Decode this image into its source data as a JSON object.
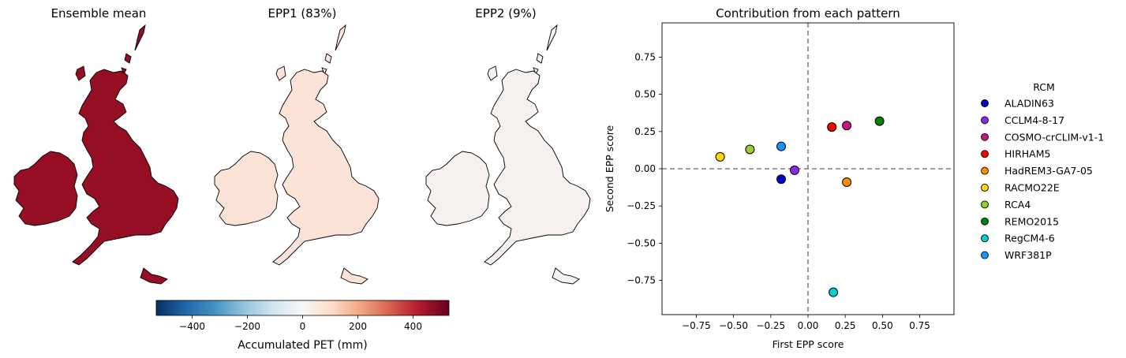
{
  "maps": [
    {
      "title": "Ensemble mean",
      "fill": "#960e24",
      "fill_alt": "#7a0620"
    },
    {
      "title": "EPP1 (83%)",
      "fill": "#fbe3d8",
      "fill_alt": "#f9dccd"
    },
    {
      "title": "EPP2 (9%)",
      "fill": "#f6f0ee",
      "fill_alt": "#eef3f7"
    }
  ],
  "colorbar": {
    "label": "Accumulated PET (mm)",
    "min": -530,
    "max": 530,
    "ticks": [
      -400,
      -200,
      0,
      200,
      400
    ],
    "tick_labels": [
      "−400",
      "−200",
      "0",
      "200",
      "400"
    ],
    "stops": [
      "#053061",
      "#2166ac",
      "#4393c3",
      "#92c5de",
      "#d1e5f0",
      "#f7f7f7",
      "#fddbc7",
      "#f4a582",
      "#d6604d",
      "#b2182b",
      "#67001f"
    ]
  },
  "chart_data": {
    "type": "scatter",
    "title": "Contribution from each pattern",
    "xlabel": "First EPP score",
    "ylabel": "Second EPP score",
    "xlim": [
      -0.98,
      0.98
    ],
    "ylim": [
      -0.98,
      0.98
    ],
    "xticks": [
      -0.75,
      -0.5,
      -0.25,
      0.0,
      0.25,
      0.5,
      0.75
    ],
    "xtick_labels": [
      "−0.75",
      "−0.50",
      "−0.25",
      "0.00",
      "0.25",
      "0.50",
      "0.75"
    ],
    "yticks": [
      0.75,
      0.5,
      0.25,
      0.0,
      -0.25,
      -0.5,
      -0.75
    ],
    "ytick_labels": [
      "0.75",
      "0.50",
      "0.25",
      "0.00",
      "−0.25",
      "−0.50",
      "−0.75"
    ],
    "zero_lines": true,
    "legend_title": "RCM",
    "legend_position": "right, outside",
    "series": [
      {
        "name": "ALADIN63",
        "x": -0.18,
        "y": -0.07,
        "color": "#0000cd"
      },
      {
        "name": "CCLM4-8-17",
        "x": -0.09,
        "y": -0.01,
        "color": "#8a2be2"
      },
      {
        "name": "COSMO-crCLIM-v1-1",
        "x": 0.26,
        "y": 0.29,
        "color": "#c71585"
      },
      {
        "name": "HIRHAM5",
        "x": 0.16,
        "y": 0.28,
        "color": "#ff0000"
      },
      {
        "name": "HadREM3-GA7-05",
        "x": 0.26,
        "y": -0.09,
        "color": "#ff8c00"
      },
      {
        "name": "RACMO22E",
        "x": -0.59,
        "y": 0.08,
        "color": "#ffd700"
      },
      {
        "name": "RCA4",
        "x": -0.39,
        "y": 0.13,
        "color": "#9acd32"
      },
      {
        "name": "REMO2015",
        "x": 0.48,
        "y": 0.32,
        "color": "#008000"
      },
      {
        "name": "RegCM4-6",
        "x": 0.17,
        "y": -0.83,
        "color": "#00ced1"
      },
      {
        "name": "WRF381P",
        "x": -0.18,
        "y": 0.15,
        "color": "#1e90ff"
      }
    ]
  }
}
